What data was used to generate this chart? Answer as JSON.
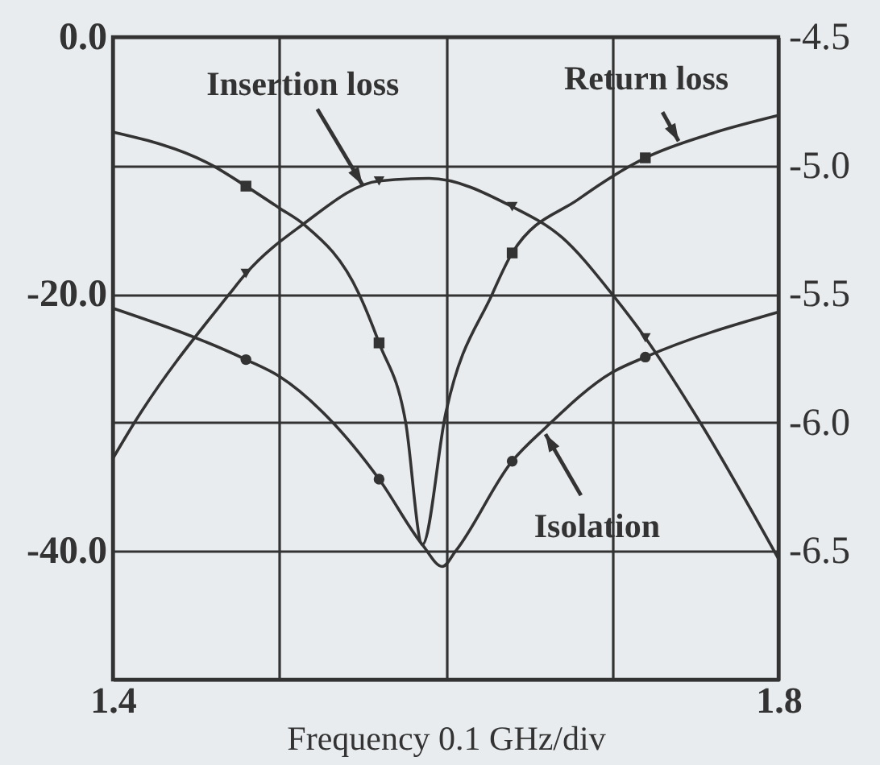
{
  "chart_data": {
    "type": "line",
    "xlabel": "Frequency 0.1 GHz/div",
    "xlim": [
      1.4,
      1.8
    ],
    "xticks": [
      1.4,
      {
        "value": 1.5,
        "label": null
      },
      {
        "value": 1.6,
        "label": null
      },
      {
        "value": 1.7,
        "label": null
      },
      1.8
    ],
    "ylim": [
      -50,
      0
    ],
    "yticks": [
      {
        "value": 0,
        "label": "0.0"
      },
      {
        "value": -10,
        "label": null
      },
      {
        "value": -20,
        "label": "-20.0"
      },
      {
        "value": -30,
        "label": null
      },
      {
        "value": -40,
        "label": "-40.0"
      },
      {
        "value": -50,
        "label": null
      }
    ],
    "y2lim": [
      -7,
      -4.5
    ],
    "y2ticks": [
      -4.5,
      {
        "value": -5,
        "label": "-5.0"
      },
      -5.5,
      {
        "value": -6,
        "label": "-6.0"
      },
      -6.5,
      {
        "value": -7,
        "label": null
      }
    ],
    "grid": true,
    "annotations": [
      {
        "text": "Insertion loss",
        "x": 1.55,
        "y": -11.5
      },
      {
        "text": "Return loss",
        "x": 1.74,
        "y": -8.1
      },
      {
        "text": "Isolation",
        "x": 1.66,
        "y": -30.9
      }
    ],
    "series": [
      {
        "color": "#333333",
        "x": [
          1.4,
          1.46,
          1.48,
          1.5,
          1.515,
          1.548,
          1.56,
          1.576,
          1.586,
          1.6,
          1.628,
          1.64,
          1.68,
          1.72,
          1.76,
          1.8
        ],
        "values": [
          -7.4,
          -10.0,
          -11.6,
          -13.3,
          -14.6,
          -20.0,
          -23.8,
          -30.0,
          -39.5,
          -29.3,
          -20.0,
          -16.8,
          -12.6,
          -9.4,
          -7.5,
          -6.1
        ]
      },
      {
        "type": "scatter",
        "color": "#333333",
        "marker": "square",
        "x": [
          1.48,
          1.56,
          1.64,
          1.72
        ],
        "values": [
          -11.6,
          -23.8,
          -16.8,
          -9.4
        ]
      },
      {
        "color": "#333333",
        "x": [
          1.4,
          1.48,
          1.5,
          1.53,
          1.56,
          1.586,
          1.598,
          1.606,
          1.64,
          1.66,
          1.7,
          1.72,
          1.8
        ],
        "values": [
          -21.1,
          -25.1,
          -26.4,
          -29.7,
          -34.4,
          -39.5,
          -41.2,
          -40.0,
          -33.0,
          -30.4,
          -26.1,
          -24.9,
          -21.4
        ]
      },
      {
        "type": "scatter",
        "color": "#333333",
        "marker": "circle",
        "x": [
          1.48,
          1.56,
          1.64,
          1.72
        ],
        "values": [
          -25.1,
          -34.4,
          -33.0,
          -24.9
        ]
      },
      {
        "color": "#333333",
        "axis": "y2",
        "x": [
          1.4,
          1.413,
          1.47,
          1.48,
          1.514,
          1.56,
          1.59,
          1.64,
          1.67,
          1.7,
          1.72,
          1.753,
          1.8
        ],
        "values": [
          -6.14,
          -6.0,
          -5.5,
          -5.42,
          -5.23,
          -5.06,
          -5.05,
          -5.16,
          -5.28,
          -5.5,
          -5.67,
          -6.0,
          -6.53
        ]
      },
      {
        "type": "scatter",
        "color": "#333333",
        "marker": "triangle",
        "axis": "y2",
        "x": [
          1.48,
          1.56,
          1.64,
          1.72
        ],
        "values": [
          -5.42,
          -5.06,
          -5.16,
          -5.67
        ]
      }
    ]
  }
}
